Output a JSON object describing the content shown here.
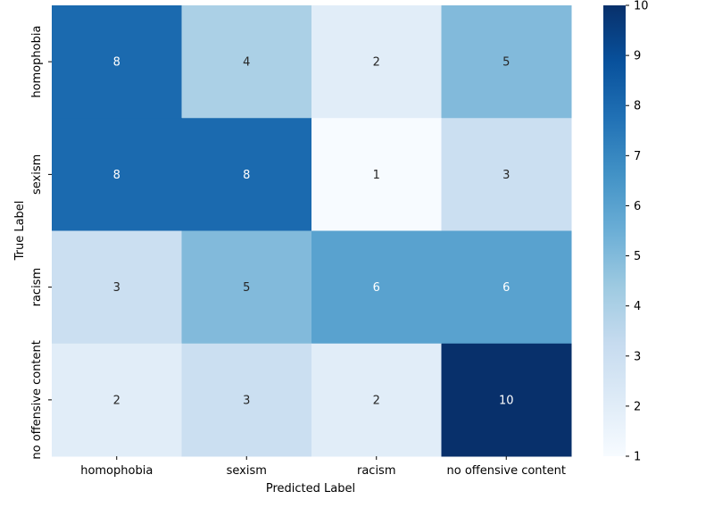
{
  "chart_data": {
    "type": "heatmap",
    "title": "",
    "xlabel": "Predicted Label",
    "ylabel": "True Label",
    "x_categories": [
      "homophobia",
      "sexism",
      "racism",
      "no offensive content"
    ],
    "y_categories": [
      "homophobia",
      "sexism",
      "racism",
      "no offensive content"
    ],
    "values": [
      [
        8,
        4,
        2,
        5
      ],
      [
        8,
        8,
        1,
        3
      ],
      [
        3,
        5,
        6,
        6
      ],
      [
        2,
        3,
        2,
        10
      ]
    ],
    "colorbar": {
      "min": 1,
      "max": 10,
      "ticks": [
        1,
        2,
        3,
        4,
        5,
        6,
        7,
        8,
        9,
        10
      ],
      "colormap": "Blues"
    },
    "grid": false
  }
}
